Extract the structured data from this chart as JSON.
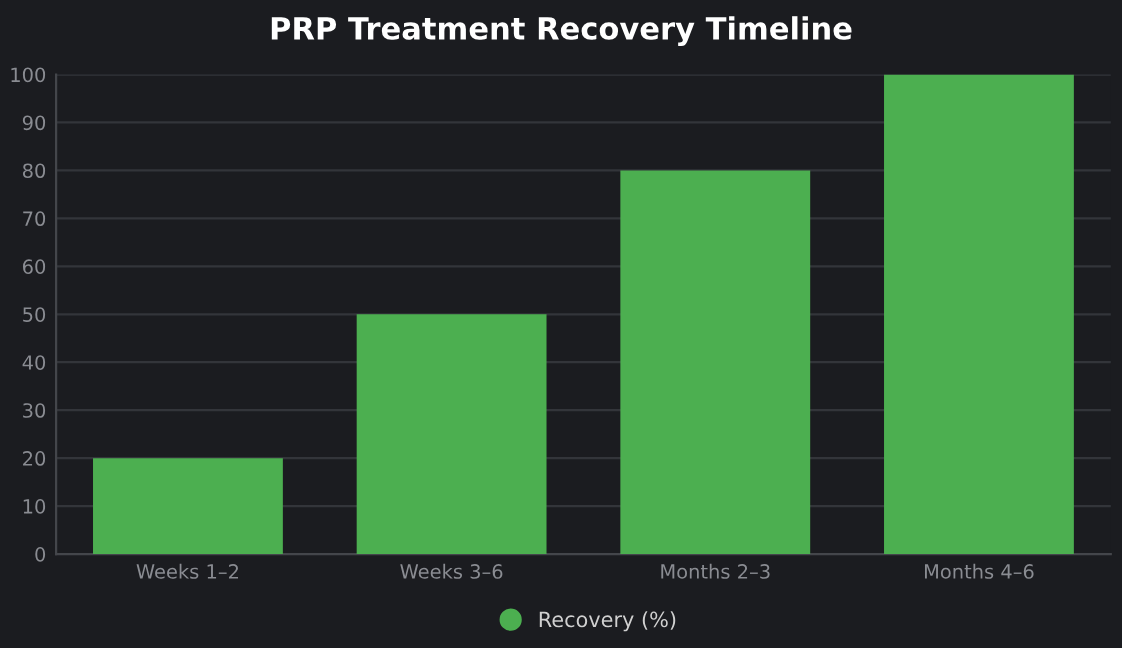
{
  "chart_data": {
    "type": "bar",
    "title": "PRP Treatment Recovery Timeline",
    "categories": [
      "Weeks 1–2",
      "Weeks 3–6",
      "Months 2–3",
      "Months 4–6"
    ],
    "series": [
      {
        "name": "Recovery (%)",
        "color": "#4caf50",
        "values": [
          20,
          50,
          80,
          100
        ]
      }
    ],
    "ylim": [
      0,
      100
    ],
    "yticks": [
      0,
      10,
      20,
      30,
      40,
      50,
      60,
      70,
      80,
      90,
      100
    ],
    "grid": "y",
    "legend": "bottom"
  }
}
